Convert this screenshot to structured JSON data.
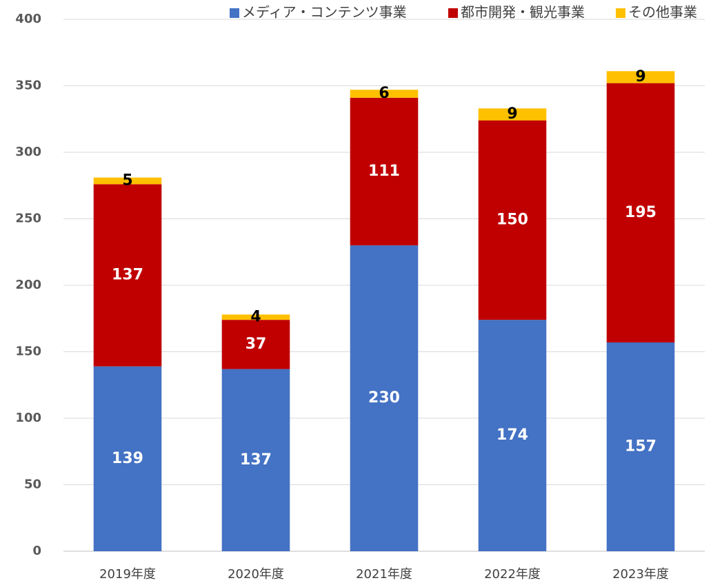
{
  "chart_data": {
    "type": "stacked_bar",
    "categories": [
      "2019年度",
      "2020年度",
      "2021年度",
      "2022年度",
      "2023年度"
    ],
    "series": [
      {
        "name": "メディア・コンテンツ事業",
        "color": "#4472c4",
        "values": [
          139,
          137,
          230,
          174,
          157
        ]
      },
      {
        "name": "都市開発・観光事業",
        "color": "#c00000",
        "values": [
          137,
          37,
          111,
          150,
          195
        ]
      },
      {
        "name": "その他事業",
        "color": "#ffc000",
        "values": [
          5,
          4,
          6,
          9,
          9
        ]
      }
    ],
    "ylim": [
      0,
      400
    ],
    "yticks": [
      0,
      50,
      100,
      150,
      200,
      250,
      300,
      350,
      400
    ],
    "grid": true,
    "legend": "top-right"
  }
}
